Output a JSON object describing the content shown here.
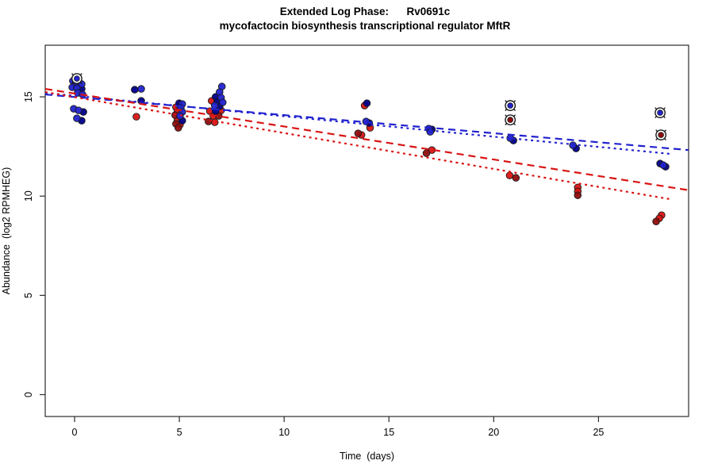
{
  "title": {
    "line1": "Extended Log Phase:      Rv0691c",
    "line2": "mycofactocin biosynthesis transcriptional regulator MftR"
  },
  "axes": {
    "x": {
      "label": "Time  (days)",
      "ticks": [
        0,
        5,
        10,
        15,
        20,
        25
      ],
      "range": [
        -1.4,
        29.3
      ]
    },
    "y": {
      "label": "Abundance  (log2 RPMHEG)",
      "ticks": [
        0,
        5,
        10,
        15
      ],
      "range": [
        -1.1,
        17.6
      ]
    }
  },
  "colors": {
    "blue": "#2222cf",
    "navy": "#00008b",
    "red": "#d91414",
    "darkred": "#8f0e0e",
    "outline": "#1a1a1a",
    "axis": "#2b2b2b",
    "outlier_ring": "#1a1a1a"
  },
  "chart_data": {
    "type": "scatter",
    "title": "Extended Log Phase: Rv0691c — mycofactocin biosynthesis transcriptional regulator MftR",
    "xlabel": "Time (days)",
    "ylabel": "Abundance (log2 RPMHEG)",
    "xlim": [
      -1.4,
      29.3
    ],
    "ylim": [
      -1.1,
      17.6
    ],
    "grid": false,
    "legend": false,
    "series": [
      {
        "name": "replicate-red",
        "color_key": "red",
        "points": [
          [
            2.95,
            14.0
          ],
          [
            4.84,
            14.48
          ],
          [
            4.91,
            14.28
          ],
          [
            4.91,
            13.84
          ],
          [
            5.03,
            13.6
          ],
          [
            6.54,
            14.8
          ],
          [
            6.46,
            14.28
          ],
          [
            6.99,
            14.32
          ],
          [
            6.62,
            14.04
          ],
          [
            6.69,
            13.72
          ],
          [
            13.84,
            14.56
          ],
          [
            14.1,
            13.44
          ],
          [
            13.69,
            13.08
          ],
          [
            17.05,
            12.32
          ],
          [
            20.76,
            11.04
          ],
          [
            24.01,
            10.44
          ],
          [
            24.01,
            10.24
          ],
          [
            28.01,
            9.04
          ],
          [
            27.9,
            8.88
          ]
        ]
      },
      {
        "name": "replicate-darkred",
        "color_key": "darkred",
        "points": [
          [
            4.8,
            14.08
          ],
          [
            4.84,
            13.64
          ],
          [
            4.95,
            13.44
          ],
          [
            6.88,
            14.04
          ],
          [
            6.39,
            13.76
          ],
          [
            13.53,
            13.16
          ],
          [
            16.79,
            12.16
          ],
          [
            21.06,
            10.92
          ],
          [
            24.01,
            10.04
          ],
          [
            27.75,
            8.72
          ]
        ]
      },
      {
        "name": "replicate-navy",
        "color_key": "navy",
        "points": [
          [
            0.34,
            15.4
          ],
          [
            0.42,
            14.24
          ],
          [
            0.34,
            13.8
          ],
          [
            2.87,
            15.36
          ],
          [
            3.18,
            14.8
          ],
          [
            4.99,
            14.68
          ],
          [
            5.14,
            13.8
          ],
          [
            6.73,
            15.0
          ],
          [
            6.81,
            14.76
          ],
          [
            6.92,
            14.52
          ],
          [
            6.73,
            14.28
          ],
          [
            13.95,
            14.68
          ],
          [
            14.06,
            13.68
          ],
          [
            17.05,
            13.36
          ],
          [
            20.94,
            12.8
          ],
          [
            23.93,
            12.4
          ],
          [
            27.94,
            11.64
          ],
          [
            28.2,
            11.48
          ]
        ]
      },
      {
        "name": "replicate-blue",
        "color_key": "blue",
        "points": [
          [
            0.11,
            15.92
          ],
          [
            -0.08,
            15.8
          ],
          [
            0.19,
            15.76
          ],
          [
            0.04,
            15.64
          ],
          [
            0.34,
            15.64
          ],
          [
            -0.11,
            15.48
          ],
          [
            0.11,
            15.44
          ],
          [
            0.15,
            15.2
          ],
          [
            0.38,
            15.12
          ],
          [
            -0.04,
            14.4
          ],
          [
            0.19,
            14.32
          ],
          [
            0.11,
            13.92
          ],
          [
            3.18,
            15.4
          ],
          [
            5.14,
            14.64
          ],
          [
            5.07,
            14.44
          ],
          [
            5.14,
            14.24
          ],
          [
            5.03,
            14.04
          ],
          [
            7.03,
            15.52
          ],
          [
            6.92,
            15.24
          ],
          [
            6.99,
            14.96
          ],
          [
            7.07,
            14.72
          ],
          [
            6.69,
            14.56
          ],
          [
            13.91,
            13.76
          ],
          [
            16.9,
            13.4
          ],
          [
            16.97,
            13.24
          ],
          [
            20.79,
            12.92
          ],
          [
            23.78,
            12.56
          ],
          [
            28.09,
            11.56
          ]
        ]
      }
    ],
    "outliers": [
      {
        "x": 0.11,
        "y": 15.92,
        "center": "blue"
      },
      {
        "x": 20.79,
        "y": 14.56,
        "center": "blue"
      },
      {
        "x": 20.79,
        "y": 13.84,
        "center": "darkred"
      },
      {
        "x": 27.94,
        "y": 14.2,
        "center": "blue"
      },
      {
        "x": 27.98,
        "y": 13.08,
        "center": "darkred"
      }
    ],
    "trend_lines": [
      {
        "name": "blue-fit-dashed",
        "color_key": "blue",
        "style": "dashed",
        "x1": -1.4,
        "y1": 15.12,
        "x2": 29.3,
        "y2": 12.32
      },
      {
        "name": "blue-fit-dotted",
        "color_key": "blue",
        "style": "dotted",
        "x1": -1.4,
        "y1": 15.2,
        "x2": 28.4,
        "y2": 12.13
      },
      {
        "name": "red-fit-dashed",
        "color_key": "red",
        "style": "dashed",
        "x1": -1.4,
        "y1": 15.4,
        "x2": 29.3,
        "y2": 10.3
      },
      {
        "name": "red-fit-dotted",
        "color_key": "red",
        "style": "dotted",
        "x1": -1.4,
        "y1": 15.24,
        "x2": 28.4,
        "y2": 9.85
      }
    ]
  }
}
